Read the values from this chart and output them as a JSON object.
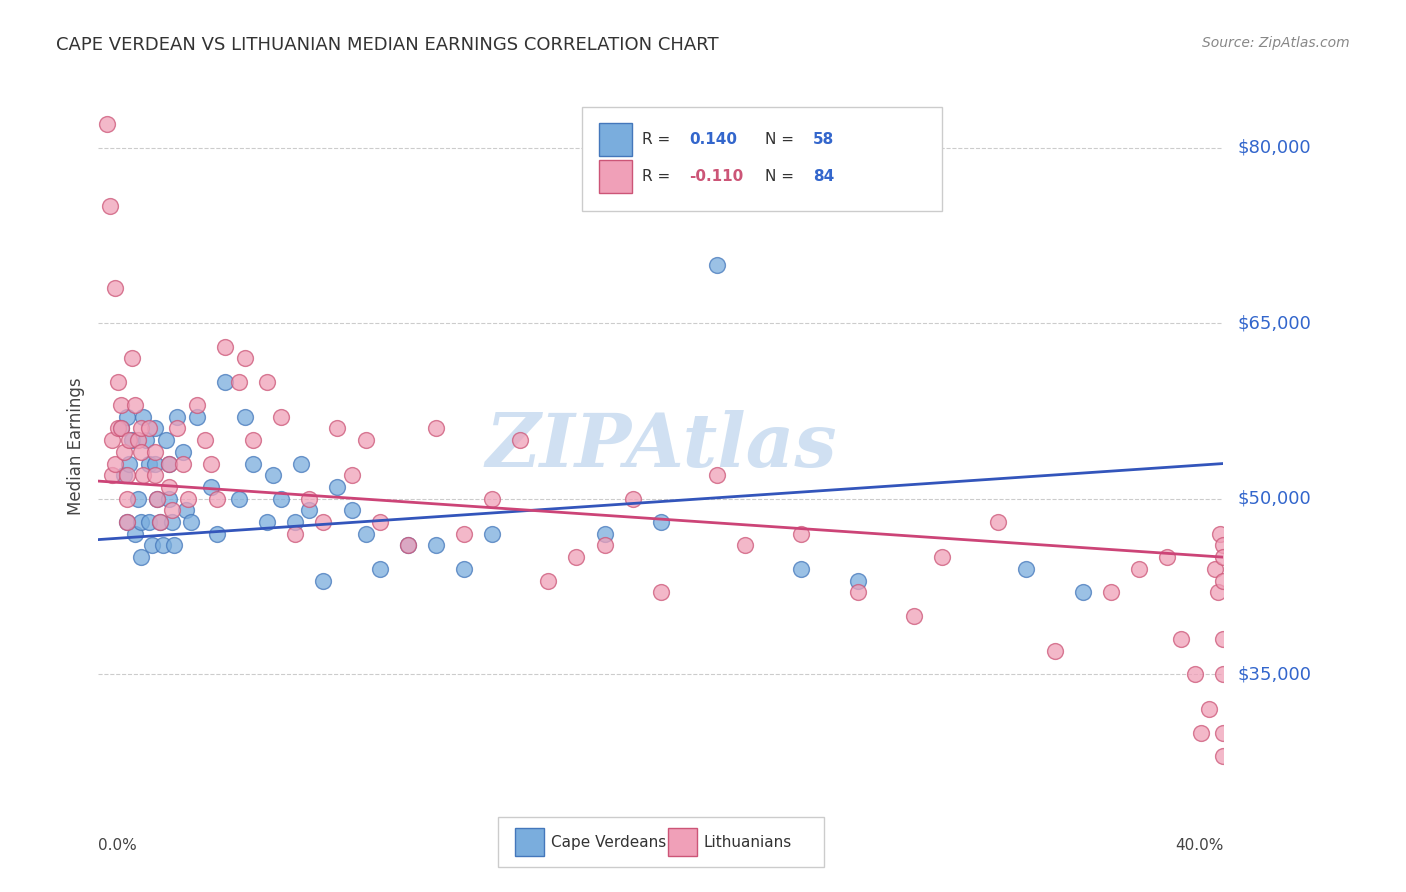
{
  "title": "CAPE VERDEAN VS LITHUANIAN MEDIAN EARNINGS CORRELATION CHART",
  "source": "Source: ZipAtlas.com",
  "ylabel": "Median Earnings",
  "ytick_labels": [
    "$35,000",
    "$50,000",
    "$65,000",
    "$80,000"
  ],
  "ytick_values": [
    35000,
    50000,
    65000,
    80000
  ],
  "ymin": 24000,
  "ymax": 85000,
  "xmin": 0.0,
  "xmax": 0.4,
  "blue_R": 0.14,
  "blue_N": 58,
  "pink_R": -0.11,
  "pink_N": 84,
  "blue_color": "#7aaddd",
  "pink_color": "#f0a0b8",
  "blue_edge_color": "#4477bb",
  "pink_edge_color": "#cc5577",
  "blue_line_color": "#3355bb",
  "pink_line_color": "#cc4477",
  "legend_label_blue": "Cape Verdeans",
  "legend_label_pink": "Lithuanians",
  "watermark": "ZIPAtlas",
  "watermark_color": "#aac8e8",
  "title_color": "#333333",
  "axis_label_color": "#3366cc",
  "background_color": "#ffffff",
  "blue_scatter_x": [
    0.008,
    0.009,
    0.01,
    0.01,
    0.011,
    0.012,
    0.013,
    0.014,
    0.015,
    0.015,
    0.016,
    0.017,
    0.018,
    0.018,
    0.019,
    0.02,
    0.02,
    0.021,
    0.022,
    0.023,
    0.024,
    0.025,
    0.025,
    0.026,
    0.027,
    0.028,
    0.03,
    0.031,
    0.033,
    0.035,
    0.04,
    0.042,
    0.045,
    0.05,
    0.052,
    0.055,
    0.06,
    0.062,
    0.065,
    0.07,
    0.072,
    0.075,
    0.08,
    0.085,
    0.09,
    0.095,
    0.1,
    0.11,
    0.12,
    0.13,
    0.14,
    0.18,
    0.2,
    0.22,
    0.25,
    0.27,
    0.33,
    0.35
  ],
  "blue_scatter_y": [
    56000,
    52000,
    48000,
    57000,
    53000,
    55000,
    47000,
    50000,
    48000,
    45000,
    57000,
    55000,
    53000,
    48000,
    46000,
    56000,
    53000,
    50000,
    48000,
    46000,
    55000,
    53000,
    50000,
    48000,
    46000,
    57000,
    54000,
    49000,
    48000,
    57000,
    51000,
    47000,
    60000,
    50000,
    57000,
    53000,
    48000,
    52000,
    50000,
    48000,
    53000,
    49000,
    43000,
    51000,
    49000,
    47000,
    44000,
    46000,
    46000,
    44000,
    47000,
    47000,
    48000,
    70000,
    44000,
    43000,
    44000,
    42000
  ],
  "pink_scatter_x": [
    0.003,
    0.004,
    0.005,
    0.005,
    0.006,
    0.006,
    0.007,
    0.007,
    0.008,
    0.008,
    0.009,
    0.01,
    0.01,
    0.01,
    0.011,
    0.012,
    0.013,
    0.014,
    0.015,
    0.015,
    0.016,
    0.018,
    0.02,
    0.02,
    0.021,
    0.022,
    0.025,
    0.025,
    0.026,
    0.028,
    0.03,
    0.032,
    0.035,
    0.038,
    0.04,
    0.042,
    0.045,
    0.05,
    0.052,
    0.055,
    0.06,
    0.065,
    0.07,
    0.075,
    0.08,
    0.085,
    0.09,
    0.095,
    0.1,
    0.11,
    0.12,
    0.13,
    0.14,
    0.15,
    0.16,
    0.17,
    0.18,
    0.19,
    0.2,
    0.22,
    0.23,
    0.25,
    0.27,
    0.29,
    0.3,
    0.32,
    0.34,
    0.36,
    0.37,
    0.38,
    0.385,
    0.39,
    0.392,
    0.395,
    0.397,
    0.398,
    0.399,
    0.4,
    0.4,
    0.4,
    0.4,
    0.4,
    0.4,
    0.4
  ],
  "pink_scatter_y": [
    82000,
    75000,
    55000,
    52000,
    68000,
    53000,
    60000,
    56000,
    58000,
    56000,
    54000,
    52000,
    50000,
    48000,
    55000,
    62000,
    58000,
    55000,
    56000,
    54000,
    52000,
    56000,
    54000,
    52000,
    50000,
    48000,
    53000,
    51000,
    49000,
    56000,
    53000,
    50000,
    58000,
    55000,
    53000,
    50000,
    63000,
    60000,
    62000,
    55000,
    60000,
    57000,
    47000,
    50000,
    48000,
    56000,
    52000,
    55000,
    48000,
    46000,
    56000,
    47000,
    50000,
    55000,
    43000,
    45000,
    46000,
    50000,
    42000,
    52000,
    46000,
    47000,
    42000,
    40000,
    45000,
    48000,
    37000,
    42000,
    44000,
    45000,
    38000,
    35000,
    30000,
    32000,
    44000,
    42000,
    47000,
    35000,
    30000,
    28000,
    46000,
    43000,
    38000,
    45000
  ]
}
